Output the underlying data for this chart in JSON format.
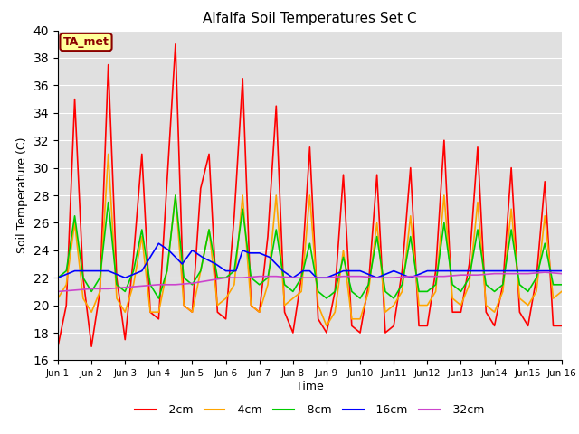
{
  "title": "Alfalfa Soil Temperatures Set C",
  "xlabel": "Time",
  "ylabel": "Soil Temperature (C)",
  "ylim": [
    16,
    40
  ],
  "yticks": [
    16,
    18,
    20,
    22,
    24,
    26,
    28,
    30,
    32,
    34,
    36,
    38,
    40
  ],
  "xlim": [
    0,
    15
  ],
  "xtick_labels": [
    "Jun 1",
    "Jun 2",
    "Jun 3",
    "Jun 4",
    "Jun 5",
    "Jun 6",
    "Jun 7",
    "Jun 8",
    "Jun 9",
    "Jun10",
    "Jun11",
    "Jun12",
    "Jun13",
    "Jun14",
    "Jun15",
    "Jun 16"
  ],
  "xtick_positions": [
    0,
    1,
    2,
    3,
    4,
    5,
    6,
    7,
    8,
    9,
    10,
    11,
    12,
    13,
    14,
    15
  ],
  "annotation_text": "TA_met",
  "annotation_color": "#8B0000",
  "annotation_bg": "#FFFF99",
  "background_color": "#E0E0E0",
  "grid_color": "#FFFFFF",
  "series": {
    "neg2cm": {
      "label": "-2cm",
      "color": "#FF0000",
      "x": [
        0.0,
        0.25,
        0.5,
        0.75,
        1.0,
        1.25,
        1.5,
        1.75,
        2.0,
        2.25,
        2.5,
        2.75,
        3.0,
        3.25,
        3.5,
        3.75,
        4.0,
        4.25,
        4.5,
        4.75,
        5.0,
        5.25,
        5.5,
        5.75,
        6.0,
        6.25,
        6.5,
        6.75,
        7.0,
        7.25,
        7.5,
        7.75,
        8.0,
        8.25,
        8.5,
        8.75,
        9.0,
        9.25,
        9.5,
        9.75,
        10.0,
        10.25,
        10.5,
        10.75,
        11.0,
        11.25,
        11.5,
        11.75,
        12.0,
        12.25,
        12.5,
        12.75,
        13.0,
        13.25,
        13.5,
        13.75,
        14.0,
        14.25,
        14.5,
        14.75,
        15.0
      ],
      "y": [
        17.0,
        20.0,
        35.0,
        22.0,
        17.0,
        21.0,
        37.5,
        22.0,
        17.5,
        23.5,
        31.0,
        19.5,
        19.0,
        29.0,
        39.0,
        20.0,
        19.5,
        28.5,
        31.0,
        19.5,
        19.0,
        26.5,
        36.5,
        20.0,
        19.5,
        25.0,
        34.5,
        19.5,
        18.0,
        22.0,
        31.5,
        19.0,
        18.0,
        21.0,
        29.5,
        18.5,
        18.0,
        21.5,
        29.5,
        18.0,
        18.5,
        22.5,
        30.0,
        18.5,
        18.5,
        22.5,
        32.0,
        19.5,
        19.5,
        23.0,
        31.5,
        19.5,
        18.5,
        21.5,
        30.0,
        19.5,
        18.5,
        22.0,
        29.0,
        18.5,
        18.5
      ]
    },
    "neg4cm": {
      "label": "-4cm",
      "color": "#FFA500",
      "x": [
        0.0,
        0.25,
        0.5,
        0.75,
        1.0,
        1.25,
        1.5,
        1.75,
        2.0,
        2.25,
        2.5,
        2.75,
        3.0,
        3.25,
        3.5,
        3.75,
        4.0,
        4.25,
        4.5,
        4.75,
        5.0,
        5.25,
        5.5,
        5.75,
        6.0,
        6.25,
        6.5,
        6.75,
        7.0,
        7.25,
        7.5,
        7.75,
        8.0,
        8.25,
        8.5,
        8.75,
        9.0,
        9.25,
        9.5,
        9.75,
        10.0,
        10.25,
        10.5,
        10.75,
        11.0,
        11.25,
        11.5,
        11.75,
        12.0,
        12.25,
        12.5,
        12.75,
        13.0,
        13.25,
        13.5,
        13.75,
        14.0,
        14.25,
        14.5,
        14.75,
        15.0
      ],
      "y": [
        20.5,
        21.5,
        26.0,
        20.5,
        19.5,
        21.0,
        31.0,
        20.5,
        19.5,
        21.5,
        25.0,
        19.5,
        19.5,
        22.5,
        28.0,
        20.0,
        19.5,
        22.5,
        25.5,
        20.0,
        20.5,
        21.5,
        28.0,
        20.0,
        19.5,
        21.5,
        28.0,
        20.0,
        20.5,
        21.0,
        28.0,
        20.0,
        18.5,
        19.5,
        24.0,
        19.0,
        19.0,
        21.0,
        26.0,
        19.5,
        20.0,
        21.0,
        26.5,
        20.0,
        20.0,
        21.0,
        28.0,
        20.5,
        20.0,
        21.5,
        27.5,
        20.0,
        19.5,
        21.0,
        27.0,
        20.5,
        20.0,
        21.0,
        26.5,
        20.5,
        21.0
      ]
    },
    "neg8cm": {
      "label": "-8cm",
      "color": "#00CC00",
      "x": [
        0.0,
        0.25,
        0.5,
        0.75,
        1.0,
        1.25,
        1.5,
        1.75,
        2.0,
        2.25,
        2.5,
        2.75,
        3.0,
        3.25,
        3.5,
        3.75,
        4.0,
        4.25,
        4.5,
        4.75,
        5.0,
        5.25,
        5.5,
        5.75,
        6.0,
        6.25,
        6.5,
        6.75,
        7.0,
        7.25,
        7.5,
        7.75,
        8.0,
        8.25,
        8.5,
        8.75,
        9.0,
        9.25,
        9.5,
        9.75,
        10.0,
        10.25,
        10.5,
        10.75,
        11.0,
        11.25,
        11.5,
        11.75,
        12.0,
        12.25,
        12.5,
        12.75,
        13.0,
        13.25,
        13.5,
        13.75,
        14.0,
        14.25,
        14.5,
        14.75,
        15.0
      ],
      "y": [
        22.0,
        22.5,
        26.5,
        22.0,
        21.0,
        22.0,
        27.5,
        21.5,
        21.0,
        22.5,
        25.5,
        21.5,
        20.5,
        22.5,
        28.0,
        22.0,
        21.5,
        22.5,
        25.5,
        22.0,
        22.0,
        22.5,
        27.0,
        22.0,
        21.5,
        22.0,
        25.5,
        21.5,
        21.0,
        22.0,
        24.5,
        21.0,
        20.5,
        21.0,
        23.5,
        21.0,
        20.5,
        21.5,
        25.0,
        21.0,
        20.5,
        21.5,
        25.0,
        21.0,
        21.0,
        21.5,
        26.0,
        21.5,
        21.0,
        22.0,
        25.5,
        21.5,
        21.0,
        21.5,
        25.5,
        21.5,
        21.0,
        22.0,
        24.5,
        21.5,
        21.5
      ]
    },
    "neg16cm": {
      "label": "-16cm",
      "color": "#0000FF",
      "x": [
        0.0,
        0.5,
        1.0,
        1.5,
        2.0,
        2.5,
        3.0,
        3.3,
        3.7,
        4.0,
        4.3,
        4.7,
        5.0,
        5.3,
        5.5,
        5.7,
        6.0,
        6.3,
        6.7,
        7.0,
        7.3,
        7.5,
        7.7,
        8.0,
        8.5,
        9.0,
        9.5,
        10.0,
        10.5,
        11.0,
        11.5,
        12.0,
        12.5,
        13.0,
        13.5,
        14.0,
        14.5,
        15.0
      ],
      "y": [
        22.0,
        22.5,
        22.5,
        22.5,
        22.0,
        22.5,
        24.5,
        24.0,
        23.0,
        24.0,
        23.5,
        23.0,
        22.5,
        22.5,
        24.0,
        23.8,
        23.8,
        23.5,
        22.5,
        22.0,
        22.5,
        22.5,
        22.0,
        22.0,
        22.5,
        22.5,
        22.0,
        22.5,
        22.0,
        22.5,
        22.5,
        22.5,
        22.5,
        22.5,
        22.5,
        22.5,
        22.5,
        22.5
      ]
    },
    "neg32cm": {
      "label": "-32cm",
      "color": "#CC44CC",
      "x": [
        0.0,
        0.5,
        1.0,
        1.5,
        2.0,
        2.5,
        3.0,
        3.5,
        4.0,
        4.5,
        5.0,
        5.5,
        6.0,
        6.5,
        7.0,
        7.5,
        8.0,
        8.5,
        9.0,
        9.5,
        10.0,
        10.5,
        11.0,
        11.5,
        12.0,
        12.5,
        13.0,
        13.5,
        14.0,
        14.5,
        15.0
      ],
      "y": [
        21.0,
        21.1,
        21.2,
        21.2,
        21.3,
        21.4,
        21.5,
        21.5,
        21.6,
        21.8,
        22.0,
        22.0,
        22.1,
        22.1,
        22.0,
        22.0,
        22.0,
        22.1,
        22.1,
        22.0,
        22.0,
        22.1,
        22.1,
        22.1,
        22.2,
        22.2,
        22.3,
        22.3,
        22.3,
        22.4,
        22.3
      ]
    }
  }
}
